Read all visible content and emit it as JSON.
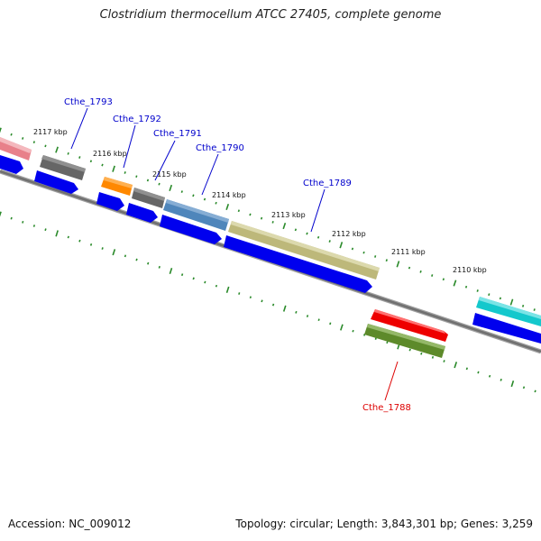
{
  "title": "Clostridium thermocellum ATCC 27405, complete genome",
  "footer": {
    "accession": "Accession: NC_009012",
    "summary": "Topology: circular; Length: 3,843,301 bp; Genes: 3,259"
  },
  "scale_labels": [
    "2117 kbp",
    "2116 kbp",
    "2115 kbp",
    "2114 kbp",
    "2113 kbp",
    "2112 kbp",
    "2111 kbp",
    "2110 kbp"
  ],
  "gene_labels": [
    {
      "text": "Cthe_1793",
      "color": "#0000cc"
    },
    {
      "text": "Cthe_1792",
      "color": "#0000cc"
    },
    {
      "text": "Cthe_1791",
      "color": "#0000cc"
    },
    {
      "text": "Cthe_1790",
      "color": "#0000cc"
    },
    {
      "text": "Cthe_1789",
      "color": "#0000cc"
    },
    {
      "text": "Cthe_1788",
      "color": "#dd0000"
    }
  ],
  "colors": {
    "backbone": "#808080",
    "tick": "#2a8a2a",
    "cds": "#0000ee",
    "pink": "#e8808a",
    "gray": "#666666",
    "orange": "#ff8800",
    "steelblue": "#4f86bb",
    "khaki": "#bdb87a",
    "red": "#ee0000",
    "olive": "#5d8a2a",
    "cyan": "#14c8cc"
  }
}
